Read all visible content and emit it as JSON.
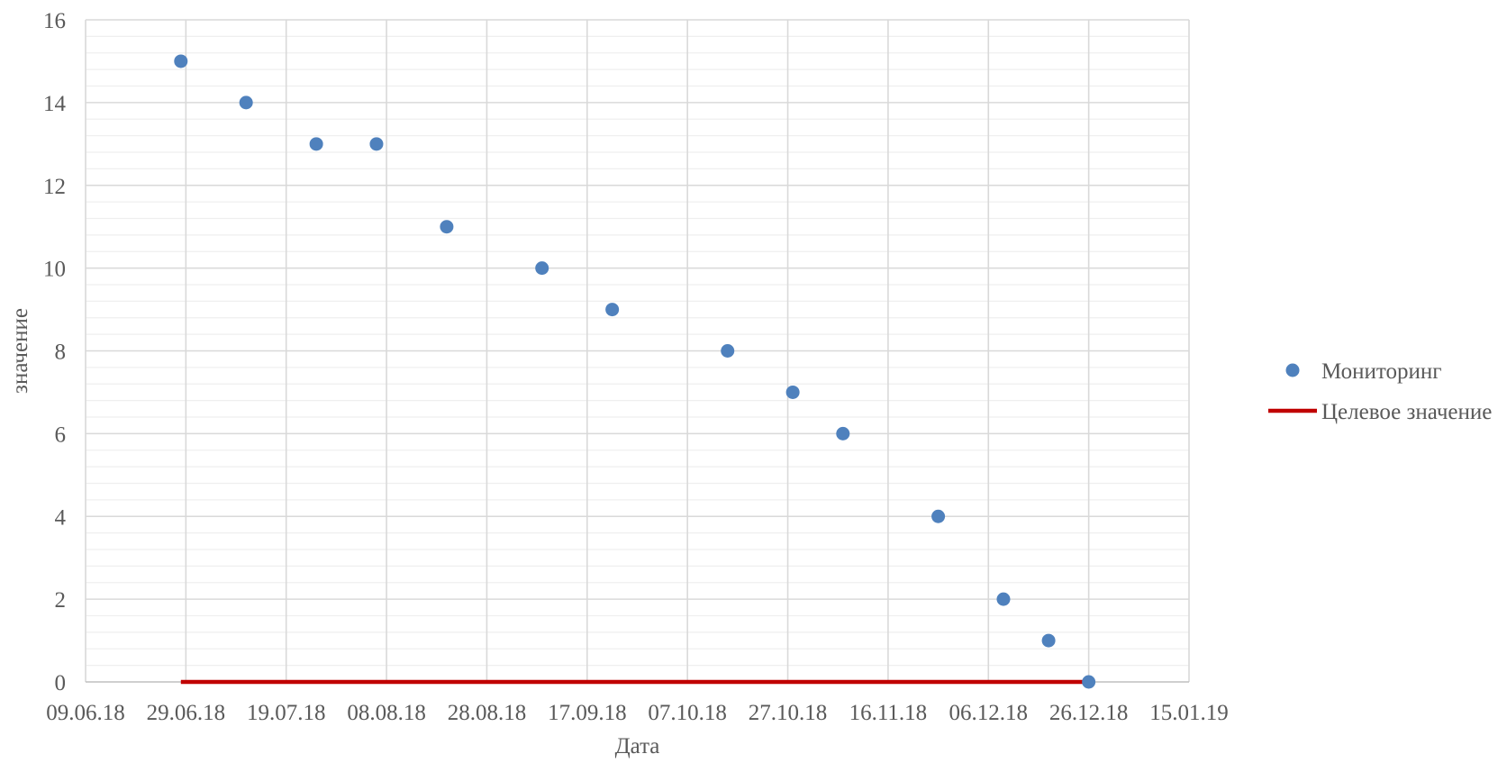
{
  "chart_data": {
    "type": "scatter",
    "title": "",
    "xlabel": "Дата",
    "ylabel": "значение",
    "x_axis_type": "date",
    "xlim": [
      "09.06.18",
      "15.01.19"
    ],
    "ylim": [
      0,
      16
    ],
    "x_ticks": [
      "09.06.18",
      "29.06.18",
      "19.07.18",
      "08.08.18",
      "28.08.18",
      "17.09.18",
      "07.10.18",
      "27.10.18",
      "16.11.18",
      "06.12.18",
      "26.12.18",
      "15.01.19"
    ],
    "y_ticks": [
      0,
      2,
      4,
      6,
      8,
      10,
      12,
      14,
      16
    ],
    "y_minor_step": 0.4,
    "grid": {
      "x_major": true,
      "y_major": true,
      "y_minor": true
    },
    "legend_position": "right",
    "series": [
      {
        "name": "Мониторинг",
        "kind": "scatter",
        "color": "#4f81bd",
        "points": [
          {
            "x": "28.06.18",
            "y": 15
          },
          {
            "x": "11.07.18",
            "y": 14
          },
          {
            "x": "25.07.18",
            "y": 13
          },
          {
            "x": "06.08.18",
            "y": 13
          },
          {
            "x": "20.08.18",
            "y": 11
          },
          {
            "x": "08.09.18",
            "y": 10
          },
          {
            "x": "22.09.18",
            "y": 9
          },
          {
            "x": "15.10.18",
            "y": 8
          },
          {
            "x": "28.10.18",
            "y": 7
          },
          {
            "x": "07.11.18",
            "y": 6
          },
          {
            "x": "26.11.18",
            "y": 4
          },
          {
            "x": "09.12.18",
            "y": 2
          },
          {
            "x": "18.12.18",
            "y": 1
          },
          {
            "x": "26.12.18",
            "y": 0
          }
        ]
      },
      {
        "name": "Целевое значение",
        "kind": "line",
        "color": "#c00000",
        "points": [
          {
            "x": "28.06.18",
            "y": 0
          },
          {
            "x": "25.12.18",
            "y": 0
          }
        ]
      }
    ]
  }
}
